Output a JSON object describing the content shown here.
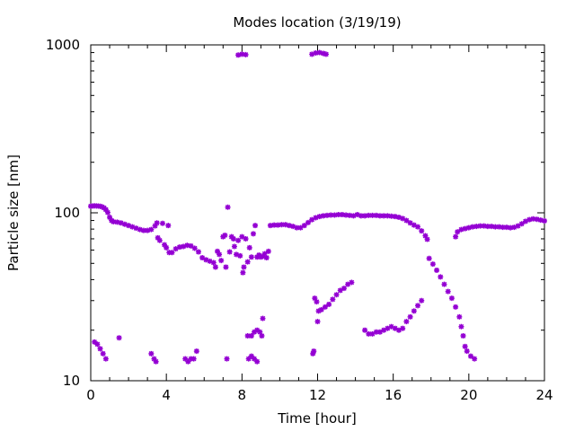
{
  "chart_data": {
    "type": "scatter",
    "title": "Modes location (3/19/19)",
    "xlabel": "Time [hour]",
    "ylabel": "Particle size [nm]",
    "xlim": [
      0,
      24
    ],
    "ylim": [
      10,
      1000
    ],
    "yscale": "log",
    "x_ticks": [
      0,
      4,
      8,
      12,
      16,
      20,
      24
    ],
    "x_tick_labels": [
      "0",
      "4",
      "8",
      "12",
      "16",
      "20",
      "24"
    ],
    "y_ticks": [
      10,
      100,
      1000
    ],
    "y_tick_labels": [
      "10",
      "100",
      "1000"
    ],
    "grid": false,
    "marker_color": "#9400d3",
    "series": [
      {
        "values": [
          [
            0.0,
            109.5
          ],
          [
            0.1,
            109.8
          ],
          [
            0.2,
            110.0
          ],
          [
            0.3,
            109.9
          ],
          [
            0.4,
            109.7
          ],
          [
            0.5,
            109.4
          ],
          [
            0.6,
            108.5
          ],
          [
            0.7,
            107.0
          ],
          [
            0.8,
            104.5
          ],
          [
            0.9,
            100.5
          ],
          [
            1.0,
            94.0
          ],
          [
            1.1,
            90.0
          ],
          [
            1.2,
            88.5
          ],
          [
            1.4,
            88.0
          ],
          [
            1.6,
            87.0
          ],
          [
            1.8,
            85.5
          ],
          [
            2.0,
            84.0
          ],
          [
            2.2,
            82.5
          ],
          [
            2.4,
            81.0
          ],
          [
            2.6,
            79.5
          ],
          [
            2.8,
            78.5
          ],
          [
            3.0,
            78.5
          ],
          [
            3.2,
            79.5
          ],
          [
            3.4,
            83.5
          ],
          [
            3.5,
            87.0
          ],
          [
            3.55,
            71.0
          ],
          [
            3.65,
            68.5
          ],
          [
            3.8,
            86.5
          ],
          [
            3.9,
            64.5
          ],
          [
            4.0,
            62.0
          ],
          [
            4.1,
            84.0
          ],
          [
            4.15,
            58.0
          ],
          [
            4.3,
            58.0
          ],
          [
            4.5,
            61.0
          ],
          [
            4.7,
            62.5
          ],
          [
            4.9,
            63.0
          ],
          [
            5.1,
            64.0
          ],
          [
            5.3,
            63.5
          ],
          [
            5.5,
            61.5
          ],
          [
            5.7,
            58.5
          ],
          [
            5.9,
            54.0
          ],
          [
            6.1,
            52.5
          ],
          [
            6.3,
            51.5
          ],
          [
            6.5,
            50.5
          ],
          [
            6.6,
            47.5
          ],
          [
            6.7,
            59.0
          ],
          [
            6.8,
            56.5
          ],
          [
            6.9,
            52.0
          ],
          [
            7.0,
            72.0
          ],
          [
            7.1,
            73.5
          ],
          [
            7.15,
            47.5
          ],
          [
            7.25,
            108.0
          ],
          [
            7.35,
            58.5
          ],
          [
            7.45,
            72.0
          ],
          [
            7.55,
            70.0
          ],
          [
            7.6,
            63.0
          ],
          [
            7.7,
            56.5
          ],
          [
            7.8,
            68.5
          ],
          [
            7.9,
            55.5
          ],
          [
            8.0,
            72.0
          ],
          [
            8.05,
            44.0
          ],
          [
            8.1,
            47.5
          ],
          [
            8.2,
            70.0
          ],
          [
            8.3,
            51.0
          ],
          [
            8.4,
            62.0
          ],
          [
            8.5,
            54.5
          ],
          [
            8.6,
            75.0
          ],
          [
            8.7,
            84.0
          ],
          [
            8.8,
            54.5
          ],
          [
            8.9,
            56.0
          ],
          [
            9.0,
            54.5
          ],
          [
            9.1,
            55.0
          ],
          [
            9.2,
            57.0
          ],
          [
            9.3,
            54.0
          ],
          [
            9.4,
            59.0
          ],
          [
            9.5,
            84.0
          ],
          [
            9.7,
            84.5
          ],
          [
            9.9,
            84.5
          ],
          [
            10.1,
            85.0
          ],
          [
            10.3,
            85.0
          ],
          [
            10.5,
            84.0
          ],
          [
            10.7,
            83.0
          ],
          [
            10.9,
            81.5
          ],
          [
            11.1,
            81.5
          ],
          [
            11.3,
            84.0
          ],
          [
            11.5,
            87.5
          ],
          [
            11.7,
            91.0
          ],
          [
            11.9,
            93.5
          ],
          [
            12.1,
            95.0
          ],
          [
            12.3,
            96.0
          ],
          [
            12.5,
            96.5
          ],
          [
            12.7,
            97.0
          ],
          [
            12.9,
            97.0
          ],
          [
            13.1,
            97.5
          ],
          [
            13.3,
            97.5
          ],
          [
            13.5,
            97.0
          ],
          [
            13.7,
            96.5
          ],
          [
            13.9,
            96.0
          ],
          [
            14.1,
            97.5
          ],
          [
            14.3,
            96.0
          ],
          [
            14.5,
            96.0
          ],
          [
            14.7,
            96.5
          ],
          [
            14.9,
            96.5
          ],
          [
            15.1,
            96.5
          ],
          [
            15.3,
            96.0
          ],
          [
            15.5,
            96.0
          ],
          [
            15.7,
            96.0
          ],
          [
            15.9,
            95.5
          ],
          [
            16.1,
            95.0
          ],
          [
            16.3,
            94.0
          ],
          [
            16.5,
            92.5
          ],
          [
            16.7,
            90.0
          ],
          [
            16.9,
            87.0
          ],
          [
            17.1,
            84.5
          ],
          [
            17.3,
            82.5
          ],
          [
            17.5,
            78.0
          ],
          [
            17.7,
            73.0
          ],
          [
            17.8,
            69.5
          ],
          [
            19.3,
            72.0
          ],
          [
            19.4,
            77.0
          ],
          [
            19.6,
            79.5
          ],
          [
            19.8,
            80.5
          ],
          [
            20.0,
            81.5
          ],
          [
            20.2,
            82.5
          ],
          [
            20.4,
            83.0
          ],
          [
            20.6,
            83.5
          ],
          [
            20.8,
            83.5
          ],
          [
            21.0,
            83.0
          ],
          [
            21.2,
            83.0
          ],
          [
            21.4,
            82.5
          ],
          [
            21.6,
            82.5
          ],
          [
            21.8,
            82.0
          ],
          [
            22.0,
            82.0
          ],
          [
            22.2,
            81.5
          ],
          [
            22.4,
            82.0
          ],
          [
            22.6,
            83.5
          ],
          [
            22.8,
            86.0
          ],
          [
            23.0,
            89.0
          ],
          [
            23.2,
            91.0
          ],
          [
            23.4,
            92.0
          ],
          [
            23.6,
            91.5
          ],
          [
            23.8,
            90.5
          ],
          [
            24.0,
            89.5
          ],
          [
            0.2,
            17.0
          ],
          [
            0.35,
            16.5
          ],
          [
            0.5,
            15.5
          ],
          [
            0.65,
            14.5
          ],
          [
            0.8,
            13.5
          ],
          [
            1.5,
            18.0
          ],
          [
            3.2,
            14.5
          ],
          [
            3.35,
            13.5
          ],
          [
            3.45,
            13.0
          ],
          [
            5.0,
            13.5
          ],
          [
            5.15,
            13.0
          ],
          [
            5.3,
            13.5
          ],
          [
            5.45,
            13.5
          ],
          [
            5.6,
            15.0
          ],
          [
            7.2,
            13.5
          ],
          [
            8.35,
            13.5
          ],
          [
            8.5,
            14.0
          ],
          [
            8.65,
            13.5
          ],
          [
            8.8,
            13.0
          ],
          [
            8.5,
            18.5
          ],
          [
            8.65,
            19.5
          ],
          [
            8.8,
            20.0
          ],
          [
            8.95,
            19.5
          ],
          [
            9.05,
            18.5
          ],
          [
            8.3,
            18.5
          ],
          [
            9.1,
            23.5
          ],
          [
            11.75,
            14.5
          ],
          [
            11.8,
            15.0
          ],
          [
            11.85,
            31.0
          ],
          [
            11.95,
            29.5
          ],
          [
            12.0,
            22.5
          ],
          [
            12.05,
            26.0
          ],
          [
            12.2,
            26.5
          ],
          [
            12.4,
            27.5
          ],
          [
            12.6,
            28.5
          ],
          [
            12.8,
            30.5
          ],
          [
            13.0,
            32.5
          ],
          [
            13.2,
            34.5
          ],
          [
            13.4,
            35.5
          ],
          [
            13.6,
            37.5
          ],
          [
            13.8,
            38.5
          ],
          [
            14.5,
            20.0
          ],
          [
            14.7,
            19.0
          ],
          [
            14.9,
            19.0
          ],
          [
            15.1,
            19.5
          ],
          [
            15.3,
            19.5
          ],
          [
            15.5,
            20.0
          ],
          [
            15.7,
            20.5
          ],
          [
            15.9,
            21.0
          ],
          [
            16.1,
            20.5
          ],
          [
            16.3,
            20.0
          ],
          [
            16.5,
            20.5
          ],
          [
            16.7,
            22.5
          ],
          [
            16.9,
            24.0
          ],
          [
            17.1,
            26.0
          ],
          [
            17.3,
            28.0
          ],
          [
            17.5,
            30.0
          ],
          [
            17.9,
            53.5
          ],
          [
            18.1,
            49.5
          ],
          [
            18.3,
            45.5
          ],
          [
            18.5,
            41.5
          ],
          [
            18.7,
            37.5
          ],
          [
            18.9,
            34.0
          ],
          [
            19.1,
            31.0
          ],
          [
            19.3,
            27.5
          ],
          [
            19.5,
            24.0
          ],
          [
            19.6,
            21.0
          ],
          [
            19.7,
            18.5
          ],
          [
            19.8,
            16.0
          ],
          [
            19.9,
            15.0
          ],
          [
            20.1,
            14.0
          ],
          [
            20.3,
            13.5
          ],
          [
            7.8,
            870
          ],
          [
            8.0,
            880
          ],
          [
            8.2,
            875
          ],
          [
            11.7,
            880
          ],
          [
            11.9,
            895
          ],
          [
            12.1,
            900
          ],
          [
            12.3,
            890
          ],
          [
            12.45,
            880
          ]
        ]
      }
    ]
  }
}
